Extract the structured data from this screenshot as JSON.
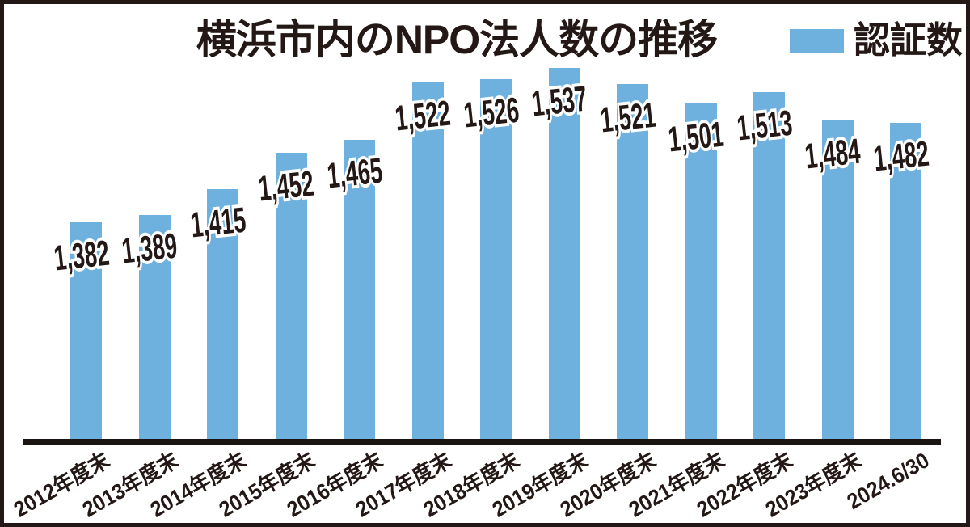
{
  "page": {
    "title": "横浜市内のNPO法人数の推移",
    "legend": {
      "label": "認証数"
    }
  },
  "colors": {
    "bar_blue": "#6fb1de",
    "ink": "#231815",
    "axis": "#1a1512",
    "background": "#ffffff"
  },
  "chart_data": {
    "type": "bar",
    "title": "横浜市内のNPO法人数の推移",
    "legend_entries": [
      "認証数"
    ],
    "legend_position": "top-right",
    "grid": false,
    "y_axis_visible": false,
    "ylim_implied": [
      1165,
      1560
    ],
    "categories": [
      "2012年度末",
      "2013年度末",
      "2014年度末",
      "2015年度末",
      "2016年度末",
      "2017年度末",
      "2018年度末",
      "2019年度末",
      "2020年度末",
      "2021年度末",
      "2022年度末",
      "2023年度末",
      "2024.6/30"
    ],
    "values": [
      1382,
      1389,
      1415,
      1452,
      1465,
      1522,
      1526,
      1537,
      1521,
      1501,
      1513,
      1484,
      1482
    ],
    "value_labels": [
      "1,382",
      "1,389",
      "1,415",
      "1,452",
      "1,465",
      "1,522",
      "1,526",
      "1,537",
      "1,521",
      "1,501",
      "1,513",
      "1,484",
      "1,482"
    ],
    "bar_color": "#6fb1de",
    "label_color": "#231815"
  }
}
